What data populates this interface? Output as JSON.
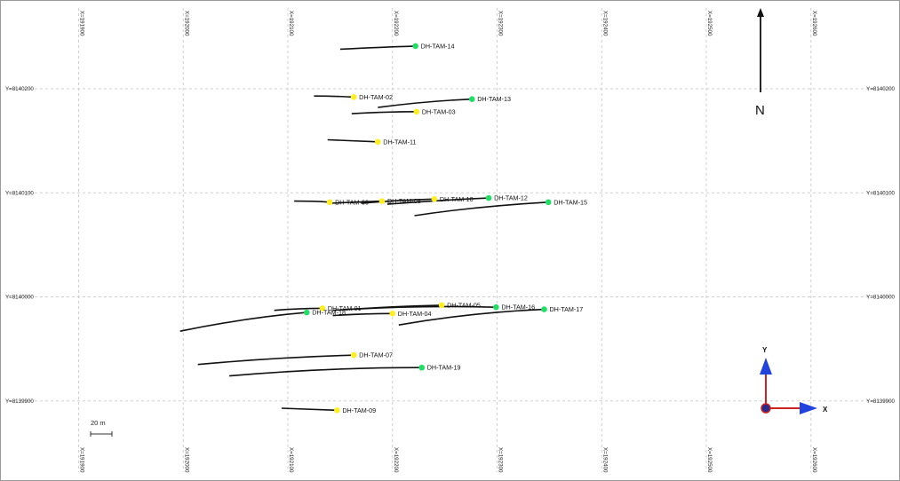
{
  "map": {
    "north_label": "N",
    "scale_label": "20 m",
    "easting_ticks": [
      {
        "label": "X=191900",
        "value": 191900
      },
      {
        "label": "X=192000",
        "value": 192000
      },
      {
        "label": "X=192100",
        "value": 192100
      },
      {
        "label": "X=192200",
        "value": 192200
      },
      {
        "label": "X=192300",
        "value": 192300
      },
      {
        "label": "X=192400",
        "value": 192400
      },
      {
        "label": "X=192500",
        "value": 192500
      },
      {
        "label": "X=192600",
        "value": 192600
      }
    ],
    "northing_ticks": [
      {
        "label": "Y=8140200",
        "value": 8140200
      },
      {
        "label": "Y=8140100",
        "value": 8140100
      },
      {
        "label": "Y=8140000",
        "value": 8140000
      },
      {
        "label": "Y=8139900",
        "value": 8139900
      }
    ],
    "axis_triad": {
      "x_label": "X",
      "y_label": "Y"
    },
    "colors": {
      "green_collar": "#22dd66",
      "yellow_collar": "#ffee22",
      "trace": "#111111",
      "triad_x": "#cc2222",
      "triad_y": "#2244dd"
    }
  },
  "holes": [
    {
      "id": "DH-TAM-14",
      "color": "green",
      "collar": [
        192222,
        8140241
      ],
      "trace": [
        [
          192150,
          8140238
        ],
        [
          192190,
          8140240
        ],
        [
          192222,
          8140241
        ]
      ]
    },
    {
      "id": "DH-TAM-02",
      "color": "yellow",
      "collar": [
        192163,
        8140192
      ],
      "trace": [
        [
          192125,
          8140193
        ],
        [
          192145,
          8140193
        ],
        [
          192163,
          8140192
        ]
      ]
    },
    {
      "id": "DH-TAM-13",
      "color": "green",
      "collar": [
        192276,
        8140190
      ],
      "trace": [
        [
          192186,
          8140182
        ],
        [
          192230,
          8140188
        ],
        [
          192276,
          8140190
        ]
      ]
    },
    {
      "id": "DH-TAM-03",
      "color": "yellow",
      "collar": [
        192223,
        8140178
      ],
      "trace": [
        [
          192161,
          8140176
        ],
        [
          192195,
          8140178
        ],
        [
          192223,
          8140178
        ]
      ]
    },
    {
      "id": "DH-TAM-11",
      "color": "yellow",
      "collar": [
        192186,
        8140149
      ],
      "trace": [
        [
          192138,
          8140151
        ],
        [
          192162,
          8140150
        ],
        [
          192186,
          8140149
        ]
      ]
    },
    {
      "id": "DH-TAM-06",
      "color": "yellow",
      "collar": [
        192140,
        8140091
      ],
      "trace": [
        [
          192106,
          8140092
        ],
        [
          192125,
          8140092
        ],
        [
          192140,
          8140091
        ]
      ]
    },
    {
      "id": "DH-TAM-08",
      "color": "yellow",
      "collar": [
        192190,
        8140092
      ],
      "trace": [
        [
          192140,
          8140090
        ],
        [
          192165,
          8140091
        ],
        [
          192190,
          8140092
        ]
      ]
    },
    {
      "id": "DH-TAM-10",
      "color": "yellow",
      "collar": [
        192240,
        8140094
      ],
      "trace": [
        [
          192170,
          8140090
        ],
        [
          192205,
          8140093
        ],
        [
          192240,
          8140094
        ]
      ]
    },
    {
      "id": "DH-TAM-12",
      "color": "green",
      "collar": [
        192292,
        8140095
      ],
      "trace": [
        [
          192195,
          8140089
        ],
        [
          192245,
          8140093
        ],
        [
          192292,
          8140095
        ]
      ]
    },
    {
      "id": "DH-TAM-15",
      "color": "green",
      "collar": [
        192349,
        8140091
      ],
      "trace": [
        [
          192221,
          8140078
        ],
        [
          192280,
          8140087
        ],
        [
          192349,
          8140091
        ]
      ]
    },
    {
      "id": "DH-TAM-01",
      "color": "yellow",
      "collar": [
        192133,
        8139989
      ],
      "trace": [
        [
          192087,
          8139987
        ],
        [
          192110,
          8139989
        ],
        [
          192133,
          8139989
        ]
      ]
    },
    {
      "id": "DH-TAM-18",
      "color": "green",
      "collar": [
        192118,
        8139985
      ],
      "trace": [
        [
          191997,
          8139967
        ],
        [
          192060,
          8139980
        ],
        [
          192118,
          8139985
        ]
      ]
    },
    {
      "id": "DH-TAM-04",
      "color": "yellow",
      "collar": [
        192200,
        8139984
      ],
      "trace": [
        [
          192143,
          8139982
        ],
        [
          192172,
          8139984
        ],
        [
          192200,
          8139984
        ]
      ]
    },
    {
      "id": "DH-TAM-05",
      "color": "yellow",
      "collar": [
        192247,
        8139992
      ],
      "trace": [
        [
          192143,
          8139987
        ],
        [
          192200,
          8139991
        ],
        [
          192247,
          8139992
        ]
      ]
    },
    {
      "id": "DH-TAM-16",
      "color": "green",
      "collar": [
        192299,
        8139990
      ],
      "trace": [
        [
          192160,
          8139988
        ],
        [
          192230,
          8139992
        ],
        [
          192299,
          8139990
        ]
      ]
    },
    {
      "id": "DH-TAM-17",
      "color": "green",
      "collar": [
        192345,
        8139988
      ],
      "trace": [
        [
          192206,
          8139973
        ],
        [
          192275,
          8139985
        ],
        [
          192345,
          8139988
        ]
      ]
    },
    {
      "id": "DH-TAM-07",
      "color": "yellow",
      "collar": [
        192163,
        8139944
      ],
      "trace": [
        [
          192014,
          8139935
        ],
        [
          192090,
          8139942
        ],
        [
          192163,
          8139944
        ]
      ]
    },
    {
      "id": "DH-TAM-19",
      "color": "green",
      "collar": [
        192228,
        8139932
      ],
      "trace": [
        [
          192044,
          8139924
        ],
        [
          192135,
          8139932
        ],
        [
          192228,
          8139932
        ]
      ]
    },
    {
      "id": "DH-TAM-09",
      "color": "yellow",
      "collar": [
        192147,
        8139891
      ],
      "trace": [
        [
          192094,
          8139893
        ],
        [
          192120,
          8139892
        ],
        [
          192147,
          8139891
        ]
      ]
    }
  ]
}
